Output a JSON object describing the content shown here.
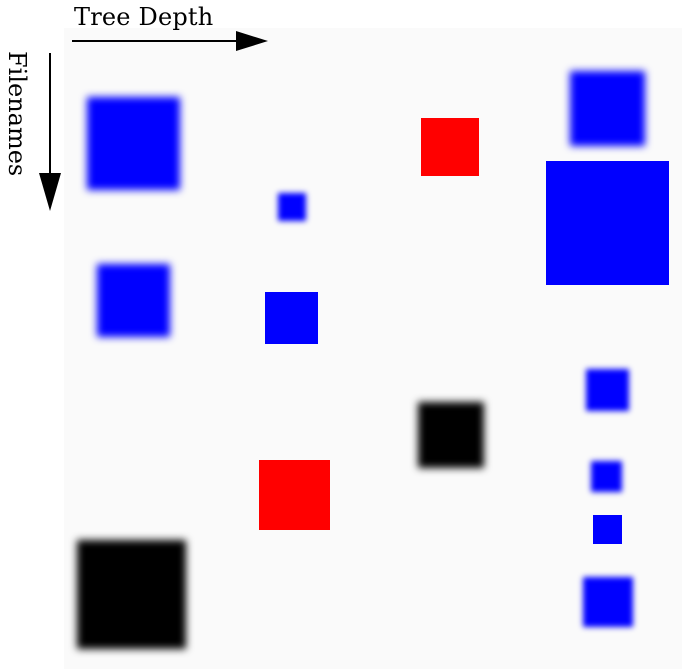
{
  "axes": {
    "x_label": "Tree Depth",
    "y_label": "Filenames"
  },
  "colors": {
    "background": "#fafafa",
    "text": "#000000",
    "blue": "#0000ff",
    "red": "#ff0000",
    "black": "#000000"
  },
  "legend_icons": [
    "right-arrow-icon",
    "down-arrow-icon"
  ],
  "squares": [
    {
      "name": "top-left-blue-square",
      "color": "blue",
      "blur": "strong"
    },
    {
      "name": "upper-middle-blue-dot",
      "color": "blue",
      "blur": "strong"
    },
    {
      "name": "upper-red-square",
      "color": "red",
      "blur": "none"
    },
    {
      "name": "top-right-blue-square",
      "color": "blue",
      "blur": "strong"
    },
    {
      "name": "large-right-blue-square",
      "color": "blue",
      "blur": "none"
    },
    {
      "name": "middle-left-blue-square",
      "color": "blue",
      "blur": "strong"
    },
    {
      "name": "middle-blue-square",
      "color": "blue",
      "blur": "none"
    },
    {
      "name": "right-middle-blue-square",
      "color": "blue",
      "blur": "strong"
    },
    {
      "name": "center-black-square",
      "color": "black",
      "blur": "strong"
    },
    {
      "name": "lower-red-square",
      "color": "red",
      "blur": "none"
    },
    {
      "name": "right-lower-blue-dot",
      "color": "blue",
      "blur": "strong"
    },
    {
      "name": "small-right-blue-square",
      "color": "blue",
      "blur": "none"
    },
    {
      "name": "bottom-left-black-square",
      "color": "black",
      "blur": "strong"
    },
    {
      "name": "bottom-right-blue-square",
      "color": "blue",
      "blur": "strong"
    }
  ]
}
